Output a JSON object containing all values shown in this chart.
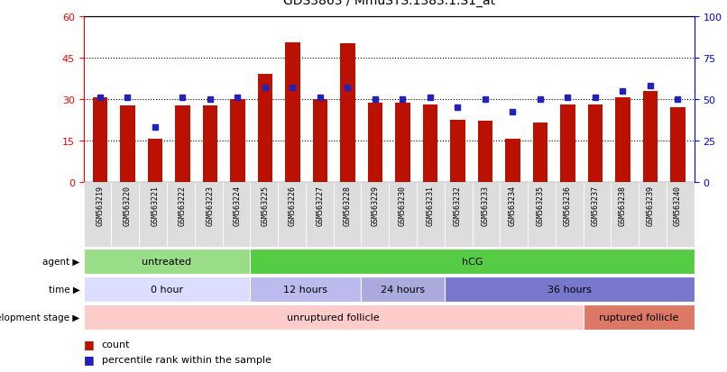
{
  "title": "GDS3863 / MmuSTS.1383.1.S1_at",
  "samples": [
    "GSM563219",
    "GSM563220",
    "GSM563221",
    "GSM563222",
    "GSM563223",
    "GSM563224",
    "GSM563225",
    "GSM563226",
    "GSM563227",
    "GSM563228",
    "GSM563229",
    "GSM563230",
    "GSM563231",
    "GSM563232",
    "GSM563233",
    "GSM563234",
    "GSM563235",
    "GSM563236",
    "GSM563237",
    "GSM563238",
    "GSM563239",
    "GSM563240"
  ],
  "counts": [
    30.5,
    27.5,
    15.5,
    27.5,
    27.5,
    30.0,
    39.0,
    50.5,
    30.0,
    50.0,
    28.5,
    28.5,
    28.0,
    22.5,
    22.0,
    15.5,
    21.5,
    28.0,
    28.0,
    30.5,
    33.0,
    27.0
  ],
  "percentiles": [
    51,
    51,
    33,
    51,
    50,
    51,
    57,
    57,
    51,
    57,
    50,
    50,
    51,
    45,
    50,
    42,
    50,
    51,
    51,
    55,
    58,
    50
  ],
  "ylim_left": [
    0,
    60
  ],
  "ylim_right": [
    0,
    100
  ],
  "yticks_left": [
    0,
    15,
    30,
    45,
    60
  ],
  "yticks_right": [
    0,
    25,
    50,
    75,
    100
  ],
  "bar_color": "#bb1100",
  "dot_color": "#2222bb",
  "agent_untreated": {
    "label": "untreated",
    "start": 0,
    "end": 6,
    "color": "#99dd88"
  },
  "agent_hcg": {
    "label": "hCG",
    "start": 6,
    "end": 22,
    "color": "#55cc44"
  },
  "time_0h": {
    "label": "0 hour",
    "start": 0,
    "end": 6,
    "color": "#ddddff"
  },
  "time_12h": {
    "label": "12 hours",
    "start": 6,
    "end": 10,
    "color": "#bbbbee"
  },
  "time_24h": {
    "label": "24 hours",
    "start": 10,
    "end": 13,
    "color": "#aaaadd"
  },
  "time_36h": {
    "label": "36 hours",
    "start": 13,
    "end": 22,
    "color": "#7777cc"
  },
  "dev_unruptured": {
    "label": "unruptured follicle",
    "start": 0,
    "end": 18,
    "color": "#ffcccc"
  },
  "dev_ruptured": {
    "label": "ruptured follicle",
    "start": 18,
    "end": 22,
    "color": "#dd7766"
  },
  "legend_count": "count",
  "legend_pct": "percentile rank within the sample",
  "sample_bg": "#dddddd",
  "label_col": "#333333"
}
